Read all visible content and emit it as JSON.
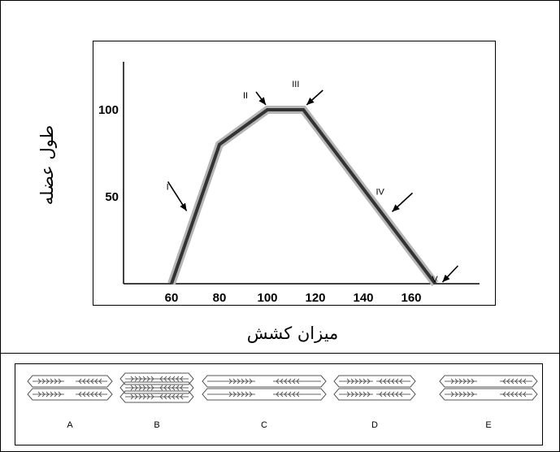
{
  "chart_data": {
    "type": "line",
    "xlabel": "میزان کشش",
    "ylabel": "طول عضله",
    "x_ticks": [
      "60",
      "80",
      "100",
      "120",
      "140",
      "160"
    ],
    "y_ticks": [
      "50",
      "100"
    ],
    "xlim": [
      40,
      180
    ],
    "ylim": [
      0,
      130
    ],
    "series": [
      {
        "points": [
          [
            60,
            0
          ],
          [
            80,
            80
          ],
          [
            100,
            100
          ],
          [
            115,
            100
          ],
          [
            170,
            0
          ]
        ]
      }
    ],
    "annotations": [
      {
        "label": "I",
        "x": 68,
        "y": 40
      },
      {
        "label": "II",
        "x": 100,
        "y": 100
      },
      {
        "label": "III",
        "x": 115,
        "y": 100
      },
      {
        "label": "IV",
        "x": 150,
        "y": 40
      },
      {
        "label": "V",
        "x": 172,
        "y": 0
      }
    ]
  },
  "sarcomeres": [
    {
      "label": "A"
    },
    {
      "label": "B"
    },
    {
      "label": "C"
    },
    {
      "label": "D"
    },
    {
      "label": "E"
    }
  ],
  "colors": {
    "line": "#333333",
    "glow": "#b5b5b5",
    "arrow": "#000000"
  }
}
